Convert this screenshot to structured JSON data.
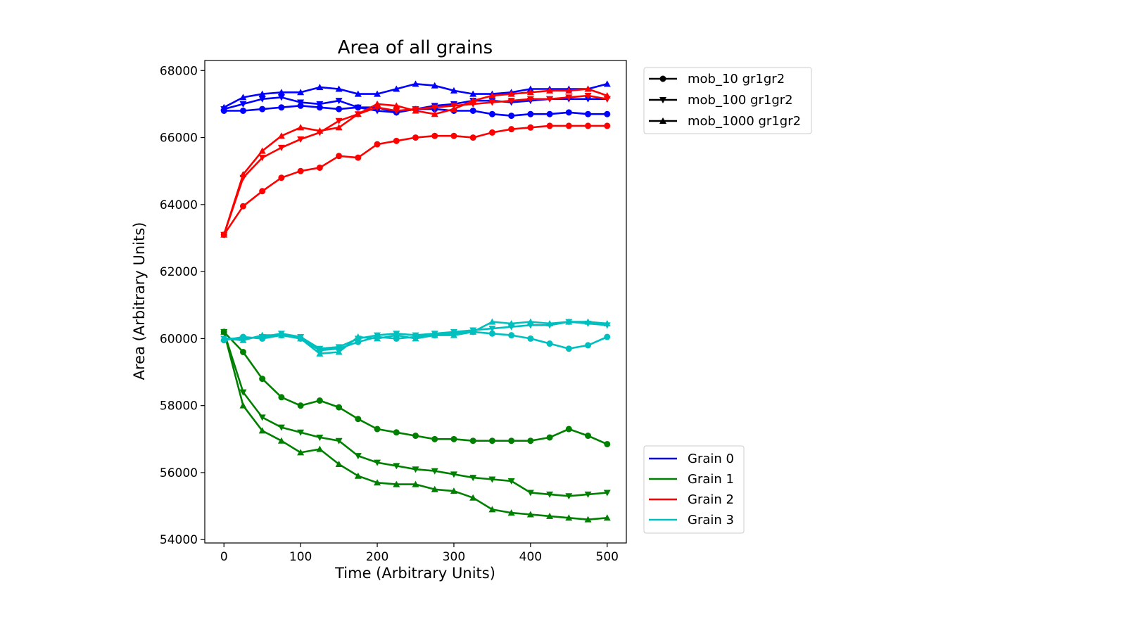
{
  "chart_data": {
    "type": "line",
    "title": "Area of all grains",
    "xlabel": "Time (Arbitrary Units)",
    "ylabel": "Area (Arbitrary Units)",
    "xlim": [
      -25,
      525
    ],
    "ylim": [
      53900,
      68300
    ],
    "xticks": [
      0,
      100,
      200,
      300,
      400,
      500
    ],
    "yticks": [
      54000,
      56000,
      58000,
      60000,
      62000,
      64000,
      66000,
      68000
    ],
    "grid": false,
    "marker_legend": {
      "placement": "top-right outside plot",
      "entries": [
        {
          "label": "mob_10 gr1gr2",
          "marker": "circle"
        },
        {
          "label": "mob_100 gr1gr2",
          "marker": "triangle-down"
        },
        {
          "label": "mob_1000 gr1gr2",
          "marker": "triangle-up"
        }
      ]
    },
    "color_legend": {
      "placement": "bottom-right outside plot",
      "entries": [
        {
          "label": "Grain 0",
          "color": "#0000ff"
        },
        {
          "label": "Grain 1",
          "color": "#008000"
        },
        {
          "label": "Grain 2",
          "color": "#ff0000"
        },
        {
          "label": "Grain 3",
          "color": "#00bfbf"
        }
      ]
    },
    "x": [
      0,
      25,
      50,
      75,
      100,
      125,
      150,
      175,
      200,
      225,
      250,
      275,
      300,
      325,
      350,
      375,
      400,
      425,
      450,
      475,
      500
    ],
    "series": [
      {
        "grain": "Grain 0",
        "mobility": "mob_10 gr1gr2",
        "marker": "circle",
        "color": "#0000ff",
        "values": [
          66800,
          66800,
          66850,
          66900,
          66950,
          66900,
          66850,
          66900,
          66900,
          66750,
          66850,
          66850,
          66800,
          66800,
          66700,
          66650,
          66700,
          66700,
          66750,
          66700,
          66700
        ]
      },
      {
        "grain": "Grain 0",
        "mobility": "mob_100 gr1gr2",
        "marker": "triangle-down",
        "color": "#0000ff",
        "values": [
          66850,
          67000,
          67150,
          67200,
          67050,
          67000,
          67100,
          66900,
          66800,
          66750,
          66850,
          66950,
          67000,
          67100,
          67100,
          67050,
          67100,
          67150,
          67150,
          67150,
          67150
        ]
      },
      {
        "grain": "Grain 0",
        "mobility": "mob_1000 gr1gr2",
        "marker": "triangle-up",
        "color": "#0000ff",
        "values": [
          66900,
          67200,
          67300,
          67350,
          67350,
          67500,
          67450,
          67300,
          67300,
          67450,
          67600,
          67550,
          67400,
          67300,
          67300,
          67350,
          67450,
          67450,
          67450,
          67450,
          67600
        ]
      },
      {
        "grain": "Grain 1",
        "mobility": "mob_10 gr1gr2",
        "marker": "circle",
        "color": "#008000",
        "values": [
          60200,
          59600,
          58800,
          58250,
          58000,
          58150,
          57950,
          57600,
          57300,
          57200,
          57100,
          57000,
          57000,
          56950,
          56950,
          56950,
          56950,
          57050,
          57300,
          57100,
          56850
        ]
      },
      {
        "grain": "Grain 1",
        "mobility": "mob_100 gr1gr2",
        "marker": "triangle-down",
        "color": "#008000",
        "values": [
          60200,
          58400,
          57650,
          57350,
          57200,
          57050,
          56950,
          56500,
          56300,
          56200,
          56100,
          56050,
          55950,
          55850,
          55800,
          55750,
          55400,
          55350,
          55300,
          55350,
          55400
        ]
      },
      {
        "grain": "Grain 1",
        "mobility": "mob_1000 gr1gr2",
        "marker": "triangle-up",
        "color": "#008000",
        "values": [
          60200,
          58000,
          57250,
          56950,
          56600,
          56700,
          56250,
          55900,
          55700,
          55650,
          55650,
          55500,
          55450,
          55250,
          54900,
          54800,
          54750,
          54700,
          54650,
          54600,
          54650
        ]
      },
      {
        "grain": "Grain 2",
        "mobility": "mob_10 gr1gr2",
        "marker": "circle",
        "color": "#ff0000",
        "values": [
          63100,
          63950,
          64400,
          64800,
          65000,
          65100,
          65450,
          65400,
          65800,
          65900,
          66000,
          66050,
          66050,
          66000,
          66150,
          66250,
          66300,
          66350,
          66350,
          66350,
          66350
        ]
      },
      {
        "grain": "Grain 2",
        "mobility": "mob_100 gr1gr2",
        "marker": "triangle-down",
        "color": "#ff0000",
        "values": [
          63100,
          64800,
          65400,
          65700,
          65950,
          66150,
          66500,
          66700,
          66900,
          66800,
          66850,
          66900,
          66950,
          67000,
          67050,
          67100,
          67150,
          67150,
          67200,
          67250,
          67150
        ]
      },
      {
        "grain": "Grain 2",
        "mobility": "mob_1000 gr1gr2",
        "marker": "triangle-up",
        "color": "#ff0000",
        "values": [
          63100,
          64900,
          65600,
          66050,
          66300,
          66200,
          66300,
          66700,
          67000,
          66950,
          66800,
          66700,
          66850,
          67100,
          67250,
          67300,
          67350,
          67400,
          67400,
          67450,
          67250
        ]
      },
      {
        "grain": "Grain 3",
        "mobility": "mob_10 gr1gr2",
        "marker": "circle",
        "color": "#00bfbf",
        "values": [
          59950,
          60050,
          60000,
          60100,
          60000,
          59650,
          59700,
          59900,
          60050,
          60000,
          60050,
          60100,
          60150,
          60200,
          60150,
          60100,
          60000,
          59850,
          59700,
          59800,
          60050
        ]
      },
      {
        "grain": "Grain 3",
        "mobility": "mob_100 gr1gr2",
        "marker": "triangle-down",
        "color": "#00bfbf",
        "values": [
          60000,
          60000,
          60050,
          60150,
          60050,
          59700,
          59750,
          60000,
          60100,
          60150,
          60100,
          60150,
          60200,
          60250,
          60300,
          60350,
          60400,
          60400,
          60500,
          60450,
          60400
        ]
      },
      {
        "grain": "Grain 3",
        "mobility": "mob_1000 gr1gr2",
        "marker": "triangle-up",
        "color": "#00bfbf",
        "values": [
          60000,
          59950,
          60100,
          60100,
          60000,
          59550,
          59600,
          60050,
          60000,
          60100,
          60000,
          60100,
          60100,
          60200,
          60500,
          60450,
          60500,
          60450,
          60500,
          60500,
          60450
        ]
      }
    ]
  }
}
